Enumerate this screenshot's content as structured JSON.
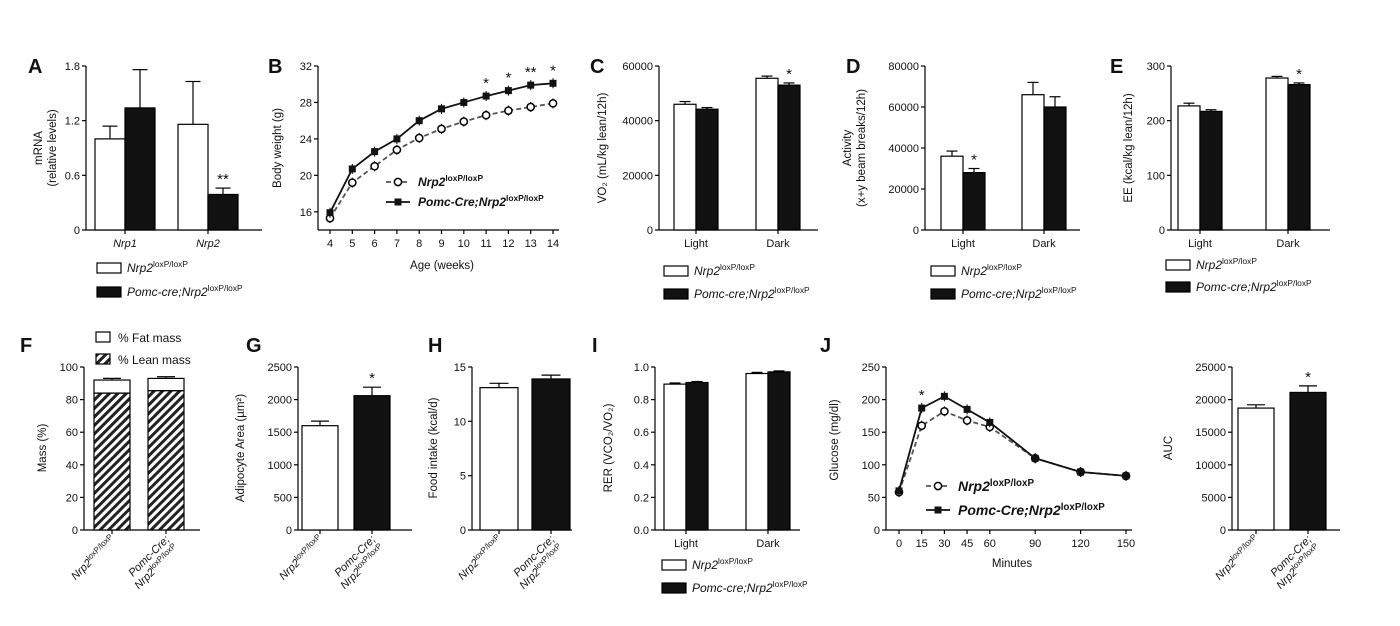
{
  "colors": {
    "control": "#ffffff",
    "mutant": "#111111",
    "axis": "#000000",
    "outline": "#000000"
  },
  "legend": {
    "control_gene": "Nrp2",
    "control_sup": "loxP/loxP",
    "mutant_prefix": "Pomc-cre;",
    "mutant_prefix_cap": "Pomc-Cre;",
    "mutant_gene": "Nrp2",
    "mutant_sup": "loxP/loxP",
    "fat": "% Fat mass",
    "lean": "% Lean mass"
  },
  "xlabels": {
    "control_gene": "Nrp2",
    "control_sup": "loxP/loxP",
    "mutant_line1": "Pomc-Cre;",
    "mutant_gene": "Nrp2",
    "mutant_sup": "loxP/loxP"
  },
  "chart_data": [
    {
      "panel": "A",
      "type": "bar",
      "ylabel_line1": "mRNA",
      "ylabel_line2": "(relative levels)",
      "ylim": [
        0,
        1.8
      ],
      "yticks": [
        "0",
        "0.6",
        "1.2",
        "1.8"
      ],
      "categories": [
        "Nrp1",
        "Nrp2"
      ],
      "series": [
        {
          "values": [
            1.0,
            1.16
          ],
          "errors": [
            0.14,
            0.47
          ]
        },
        {
          "values": [
            1.34,
            0.39
          ],
          "errors": [
            0.42,
            0.07
          ]
        }
      ],
      "annotations": [
        {
          "category": 1,
          "series": 1,
          "text": "**"
        }
      ]
    },
    {
      "panel": "B",
      "type": "line",
      "xlabel": "Age (weeks)",
      "ylabel": "Body weight (g)",
      "ylim": [
        14,
        32
      ],
      "yticks": [
        "16",
        "20",
        "24",
        "28",
        "32"
      ],
      "x": [
        4,
        5,
        6,
        7,
        8,
        9,
        10,
        11,
        12,
        13,
        14
      ],
      "series": [
        {
          "values": [
            15.3,
            19.2,
            21.0,
            22.8,
            24.1,
            25.1,
            25.9,
            26.6,
            27.1,
            27.5,
            27.9
          ]
        },
        {
          "values": [
            15.9,
            20.7,
            22.6,
            24.0,
            26.0,
            27.3,
            28.0,
            28.7,
            29.3,
            29.9,
            30.1
          ]
        }
      ],
      "annotations": [
        "",
        "",
        "",
        "",
        "",
        "",
        "",
        "*",
        "*",
        "**",
        "*"
      ]
    },
    {
      "panel": "C",
      "type": "bar",
      "ylabel": "VO₂ (mL/kg lean/12h)",
      "ylim": [
        0,
        60000
      ],
      "yticks": [
        "0",
        "20000",
        "40000",
        "60000"
      ],
      "categories": [
        "Light",
        "Dark"
      ],
      "series": [
        {
          "values": [
            46000,
            55500
          ],
          "errors": [
            1000,
            800
          ]
        },
        {
          "values": [
            44200,
            53000
          ],
          "errors": [
            600,
            800
          ]
        }
      ],
      "annotations": [
        {
          "category": 1,
          "series": 1,
          "text": "*"
        }
      ]
    },
    {
      "panel": "D",
      "type": "bar",
      "ylabel_line1": "Activity",
      "ylabel_line2": "(x+y beam breaks/12h)",
      "ylim": [
        0,
        80000
      ],
      "yticks": [
        "0",
        "20000",
        "40000",
        "60000",
        "80000"
      ],
      "categories": [
        "Light",
        "Dark"
      ],
      "series": [
        {
          "values": [
            36000,
            66000
          ],
          "errors": [
            2500,
            6000
          ]
        },
        {
          "values": [
            28000,
            60000
          ],
          "errors": [
            2000,
            5000
          ]
        }
      ],
      "annotations": [
        {
          "category": 0,
          "series": 1,
          "text": "*"
        }
      ]
    },
    {
      "panel": "E",
      "type": "bar",
      "ylabel": "EE (kcal/kg lean/12h)",
      "ylim": [
        0,
        300
      ],
      "yticks": [
        "0",
        "100",
        "200",
        "300"
      ],
      "categories": [
        "Light",
        "Dark"
      ],
      "series": [
        {
          "values": [
            227,
            278
          ],
          "errors": [
            5,
            3
          ]
        },
        {
          "values": [
            217,
            266
          ],
          "errors": [
            3,
            3
          ]
        }
      ],
      "annotations": [
        {
          "category": 1,
          "series": 1,
          "text": "*"
        }
      ]
    },
    {
      "panel": "F",
      "type": "bar",
      "ylabel": "Mass (%)",
      "ylim": [
        0,
        100
      ],
      "yticks": [
        "0",
        "20",
        "40",
        "60",
        "80",
        "100"
      ],
      "series": [
        {
          "name": "% Lean mass",
          "values": [
            84,
            85.5
          ]
        },
        {
          "name": "% Fat mass",
          "values": [
            8,
            7.5
          ]
        }
      ],
      "errors": [
        1,
        1
      ]
    },
    {
      "panel": "G",
      "type": "bar",
      "ylabel": "Adipocyte Area (µm²)",
      "ylim": [
        0,
        2500
      ],
      "yticks": [
        "0",
        "500",
        "1000",
        "1500",
        "2000",
        "2500"
      ],
      "values": [
        1600,
        2060
      ],
      "errors": [
        70,
        130
      ],
      "annotations": [
        "",
        "*"
      ]
    },
    {
      "panel": "H",
      "type": "bar",
      "ylabel": "Food intake (kcal/d)",
      "ylim": [
        0,
        15
      ],
      "yticks": [
        "0",
        "5",
        "10",
        "15"
      ],
      "values": [
        13.1,
        13.9
      ],
      "errors": [
        0.4,
        0.35
      ],
      "annotations": [
        "",
        ""
      ]
    },
    {
      "panel": "I",
      "type": "bar",
      "ylabel": "RER (VCO₂/VO₂)",
      "ylim": [
        0,
        1.0
      ],
      "yticks": [
        "0.0",
        "0.2",
        "0.4",
        "0.6",
        "0.8",
        "1.0"
      ],
      "categories": [
        "Light",
        "Dark"
      ],
      "series": [
        {
          "values": [
            0.895,
            0.96
          ],
          "errors": [
            0.007,
            0.007
          ]
        },
        {
          "values": [
            0.905,
            0.97
          ],
          "errors": [
            0.006,
            0.006
          ]
        }
      ],
      "annotations": []
    },
    {
      "panel": "J",
      "type": "line",
      "xlabel": "Minutes",
      "ylabel": "Glucose (mg/dl)",
      "ylim": [
        0,
        250
      ],
      "yticks": [
        "0",
        "50",
        "100",
        "150",
        "200",
        "250"
      ],
      "x": [
        0,
        15,
        30,
        45,
        60,
        90,
        120,
        150
      ],
      "series": [
        {
          "values": [
            58,
            160,
            182,
            168,
            158,
            110,
            89,
            83
          ]
        },
        {
          "values": [
            60,
            187,
            205,
            185,
            165,
            110,
            89,
            83
          ]
        }
      ],
      "annotations": [
        "",
        "*",
        "",
        "",
        "",
        "",
        "",
        ""
      ]
    },
    {
      "panel": "J2",
      "type": "bar",
      "ylabel": "AUC",
      "ylim": [
        0,
        25000
      ],
      "yticks": [
        "0",
        "5000",
        "10000",
        "15000",
        "20000",
        "25000"
      ],
      "values": [
        18700,
        21100
      ],
      "errors": [
        500,
        1000
      ],
      "annotations": [
        "",
        "*"
      ]
    }
  ]
}
